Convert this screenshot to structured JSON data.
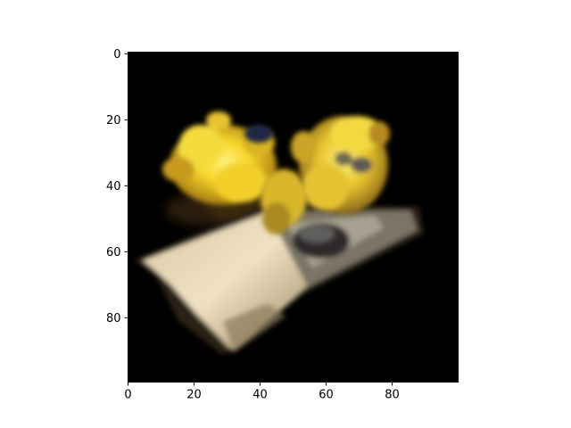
{
  "figure": {
    "background": "#ffffff",
    "image_background": "#000000",
    "subject": "low-resolution rendered image: yellow flowers resting on a tilted pale book/box",
    "axis_color": "#000000"
  },
  "chart_data": {
    "type": "image",
    "title": "",
    "xlabel": "",
    "ylabel": "",
    "xlim": [
      0,
      100
    ],
    "ylim": [
      100,
      0
    ],
    "x_ticks": [
      0,
      20,
      40,
      60,
      80
    ],
    "y_ticks": [
      0,
      20,
      40,
      60,
      80
    ],
    "x_tick_labels": [
      "0",
      "20",
      "40",
      "60",
      "80"
    ],
    "y_tick_labels": [
      "0",
      "20",
      "40",
      "60",
      "80"
    ],
    "grid": false
  }
}
